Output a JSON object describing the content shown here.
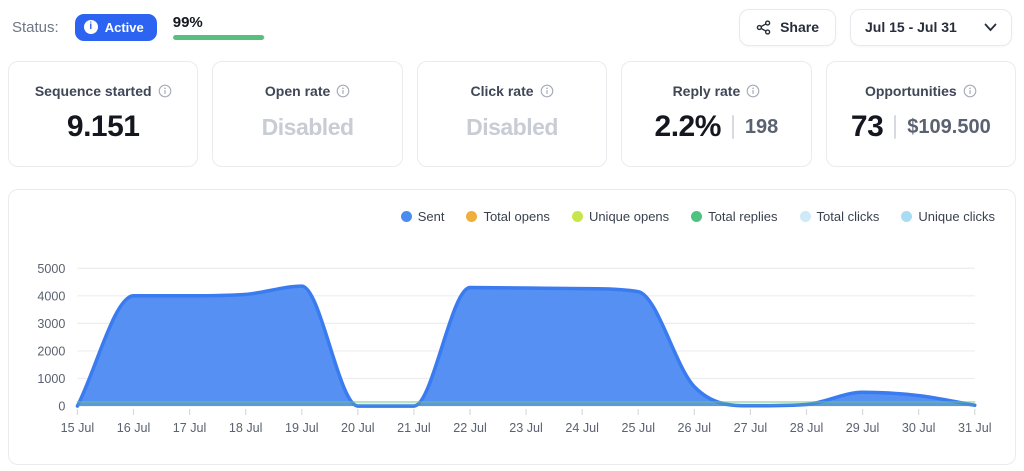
{
  "status_bar": {
    "label": "Status:",
    "badge": {
      "text": "Active",
      "color": "#2d63f1"
    },
    "progress": {
      "percent_label": "99%",
      "percent": 99,
      "bar_color": "#57c07d"
    },
    "share_button_label": "Share",
    "date_range_label": "Jul 15 - Jul 31"
  },
  "stat_cards": [
    {
      "label": "Sequence started",
      "value": "9.151",
      "disabled": false,
      "secondary": null
    },
    {
      "label": "Open rate",
      "value": "Disabled",
      "disabled": true,
      "secondary": null
    },
    {
      "label": "Click rate",
      "value": "Disabled",
      "disabled": true,
      "secondary": null
    },
    {
      "label": "Reply rate",
      "value": "2.2%",
      "disabled": false,
      "secondary": "198"
    },
    {
      "label": "Opportunities",
      "value": "73",
      "disabled": false,
      "secondary": "$109.500"
    }
  ],
  "chart_data": {
    "type": "area",
    "title": "",
    "xlabel": "",
    "ylabel": "",
    "x": [
      "15 Jul",
      "16 Jul",
      "17 Jul",
      "18 Jul",
      "19 Jul",
      "20 Jul",
      "21 Jul",
      "22 Jul",
      "23 Jul",
      "24 Jul",
      "25 Jul",
      "26 Jul",
      "27 Jul",
      "28 Jul",
      "29 Jul",
      "30 Jul",
      "31 Jul"
    ],
    "ylim": [
      0,
      5000
    ],
    "yticks": [
      0,
      1000,
      2000,
      3000,
      4000,
      5000
    ],
    "grid": true,
    "legend_position": "top-right",
    "series": [
      {
        "name": "Sent",
        "dot": "#4a8cf2",
        "fill": "#5590f2",
        "stroke": "#3a7cf0",
        "stroke_width": 3.5,
        "values": [
          0,
          4000,
          4000,
          4050,
          4350,
          0,
          0,
          4300,
          4280,
          4260,
          4150,
          700,
          10,
          60,
          500,
          380,
          30
        ]
      },
      {
        "name": "Total opens",
        "dot": "#f0ae3c",
        "fill": "none",
        "stroke": "none",
        "stroke_width": 0,
        "values": [
          0,
          0,
          0,
          0,
          0,
          0,
          0,
          0,
          0,
          0,
          0,
          0,
          0,
          0,
          0,
          0,
          0
        ]
      },
      {
        "name": "Unique opens",
        "dot": "#c7e64d",
        "fill": "none",
        "stroke": "none",
        "stroke_width": 0,
        "values": [
          0,
          0,
          0,
          0,
          0,
          0,
          0,
          0,
          0,
          0,
          0,
          0,
          0,
          0,
          0,
          0,
          0
        ]
      },
      {
        "name": "Total replies",
        "dot": "#4dc47f",
        "fill": "rgba(109,199,133,0.20)",
        "stroke": "rgba(109,199,133,0.55)",
        "stroke_width": 1.5,
        "values": [
          150,
          150,
          150,
          150,
          150,
          150,
          150,
          150,
          150,
          150,
          150,
          150,
          150,
          150,
          150,
          150,
          150
        ]
      },
      {
        "name": "Total clicks",
        "dot": "#cfe9f8",
        "fill": "none",
        "stroke": "none",
        "stroke_width": 0,
        "values": [
          0,
          0,
          0,
          0,
          0,
          0,
          0,
          0,
          0,
          0,
          0,
          0,
          0,
          0,
          0,
          0,
          0
        ]
      },
      {
        "name": "Unique clicks",
        "dot": "#a8dcf2",
        "fill": "none",
        "stroke": "none",
        "stroke_width": 0,
        "values": [
          0,
          0,
          0,
          0,
          0,
          0,
          0,
          0,
          0,
          0,
          0,
          0,
          0,
          0,
          0,
          0,
          0
        ]
      }
    ],
    "colors": {
      "gridline": "#ededf1",
      "tick": "#d8dade"
    }
  }
}
